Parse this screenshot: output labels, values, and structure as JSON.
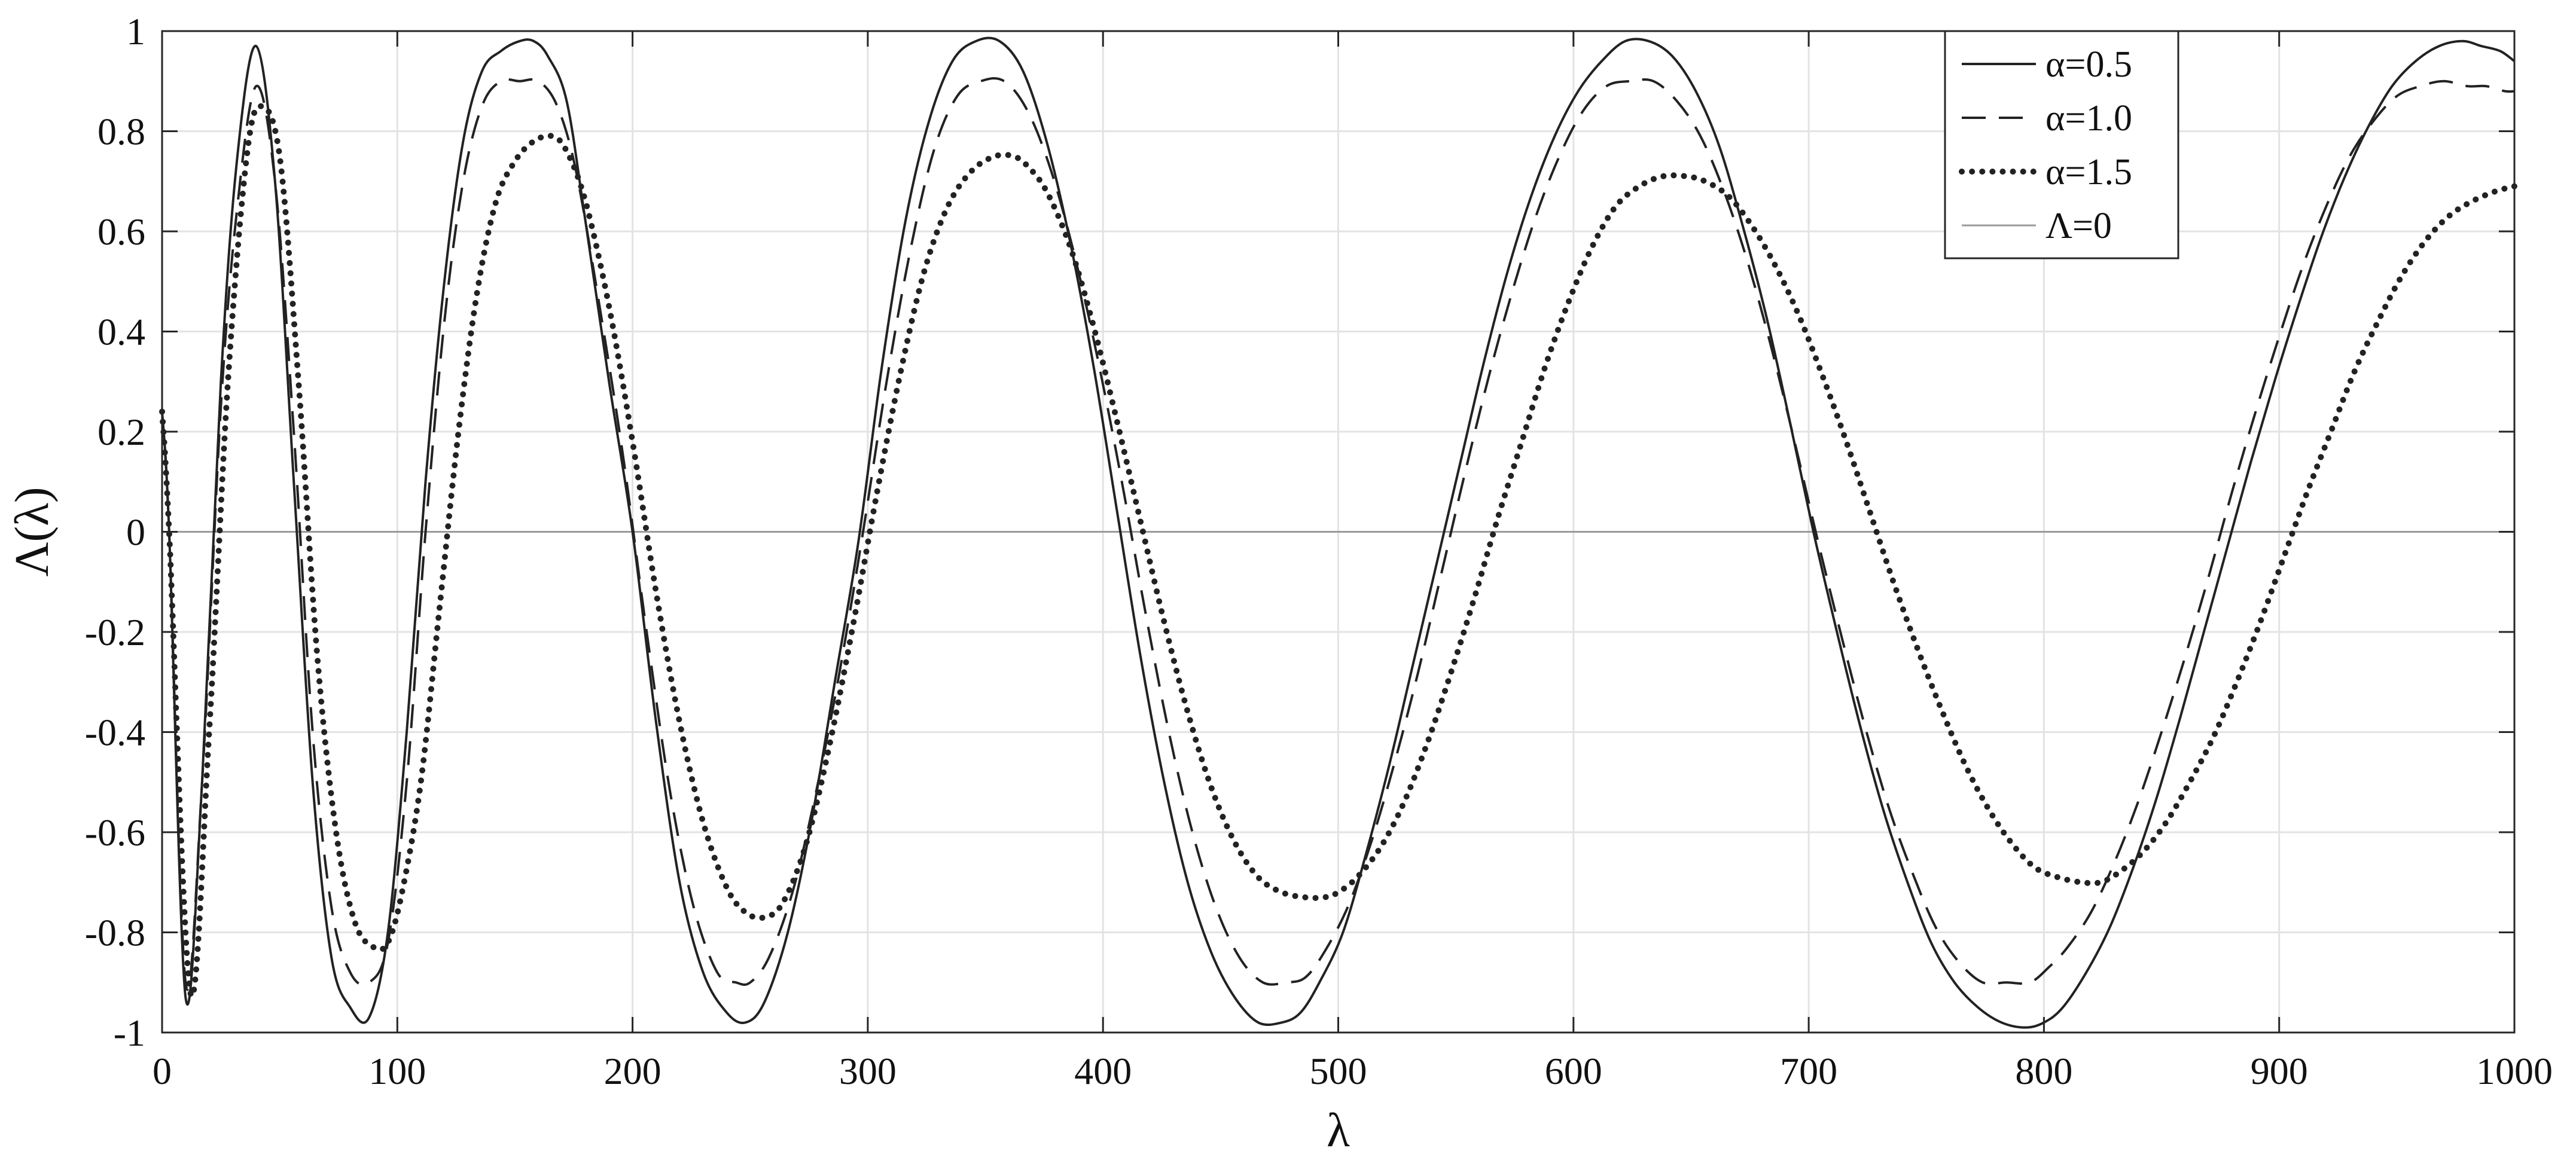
{
  "chart_data": {
    "type": "line",
    "title": "",
    "xlabel": "λ",
    "ylabel": "Λ(λ)",
    "xlim": [
      0,
      1000
    ],
    "ylim": [
      -1,
      1
    ],
    "xticks": [
      0,
      100,
      200,
      300,
      400,
      500,
      600,
      700,
      800,
      900,
      1000
    ],
    "xtick_labels": [
      "0",
      "100",
      "200",
      "300",
      "400",
      "500",
      "600",
      "700",
      "800",
      "900",
      "1000"
    ],
    "yticks": [
      -1,
      -0.8,
      -0.6,
      -0.4,
      -0.2,
      0,
      0.2,
      0.4,
      0.6,
      0.8,
      1
    ],
    "ytick_labels": [
      "-1",
      "-0.8",
      "-0.6",
      "-0.4",
      "-0.2",
      "0",
      "0.2",
      "0.4",
      "0.6",
      "0.8",
      "1"
    ],
    "grid": true,
    "legend_position": "top-right",
    "series": [
      {
        "name": "α=0.5",
        "style": "solid",
        "color": "#222222",
        "x": [
          0,
          3,
          10,
          17,
          25,
          32,
          40,
          48,
          56,
          64,
          72,
          80,
          88,
          96,
          104,
          112,
          120,
          128,
          136,
          144,
          152,
          158,
          164,
          172,
          180,
          190,
          200,
          210,
          220,
          230,
          240,
          248,
          256,
          266,
          276,
          286,
          296,
          306,
          316,
          326,
          336,
          346,
          356,
          366,
          376,
          386,
          396,
          406,
          416,
          426,
          436,
          446,
          456,
          466,
          476,
          484,
          492,
          502,
          512,
          522,
          532,
          542,
          552,
          562,
          572,
          582,
          592,
          602,
          612,
          622,
          632,
          642,
          652,
          662,
          672,
          682,
          692,
          702,
          712,
          722,
          732,
          742,
          752,
          762,
          772,
          782,
          792,
          800,
          808,
          818,
          828,
          838,
          848,
          858,
          868,
          878,
          888,
          898,
          908,
          918,
          928,
          938,
          948,
          958,
          968,
          978,
          986,
          994,
          1000
        ],
        "y": [
          0.24,
          0.0,
          -0.93,
          -0.5,
          0.3,
          0.75,
          0.97,
          0.7,
          0.1,
          -0.5,
          -0.85,
          -0.95,
          -0.97,
          -0.8,
          -0.4,
          0.1,
          0.5,
          0.78,
          0.92,
          0.96,
          0.98,
          0.98,
          0.95,
          0.86,
          0.62,
          0.3,
          0.0,
          -0.38,
          -0.7,
          -0.88,
          -0.96,
          -0.98,
          -0.94,
          -0.8,
          -0.58,
          -0.3,
          -0.02,
          0.33,
          0.62,
          0.82,
          0.94,
          0.98,
          0.98,
          0.92,
          0.78,
          0.58,
          0.33,
          0.04,
          -0.25,
          -0.5,
          -0.7,
          -0.84,
          -0.93,
          -0.98,
          -0.98,
          -0.96,
          -0.9,
          -0.8,
          -0.64,
          -0.46,
          -0.26,
          -0.06,
          0.14,
          0.34,
          0.52,
          0.67,
          0.79,
          0.88,
          0.94,
          0.98,
          0.98,
          0.95,
          0.88,
          0.77,
          0.61,
          0.43,
          0.22,
          0.0,
          -0.2,
          -0.39,
          -0.56,
          -0.7,
          -0.82,
          -0.9,
          -0.95,
          -0.98,
          -0.99,
          -0.98,
          -0.95,
          -0.88,
          -0.79,
          -0.67,
          -0.53,
          -0.37,
          -0.2,
          -0.03,
          0.14,
          0.3,
          0.45,
          0.59,
          0.71,
          0.81,
          0.89,
          0.94,
          0.97,
          0.98,
          0.97,
          0.96,
          0.94
        ]
      },
      {
        "name": "α=1.0",
        "style": "dashed",
        "color": "#222222",
        "x": [
          0,
          3,
          10,
          17,
          25,
          32,
          40,
          48,
          56,
          64,
          72,
          80,
          88,
          96,
          104,
          112,
          120,
          128,
          136,
          144,
          152,
          160,
          168,
          176,
          186,
          196,
          206,
          216,
          226,
          236,
          244,
          250,
          258,
          268,
          278,
          288,
          298,
          308,
          318,
          328,
          338,
          348,
          358,
          368,
          378,
          388,
          398,
          408,
          418,
          428,
          438,
          448,
          458,
          468,
          478,
          486,
          494,
          504,
          514,
          524,
          534,
          544,
          554,
          564,
          574,
          584,
          594,
          604,
          614,
          624,
          634,
          644,
          654,
          664,
          674,
          684,
          694,
          704,
          714,
          724,
          734,
          744,
          754,
          764,
          774,
          784,
          794,
          802,
          810,
          820,
          830,
          840,
          850,
          860,
          870,
          880,
          890,
          900,
          910,
          920,
          930,
          940,
          950,
          960,
          970,
          980,
          988,
          996,
          1000
        ],
        "y": [
          0.24,
          0.0,
          -0.9,
          -0.5,
          0.25,
          0.65,
          0.89,
          0.7,
          0.2,
          -0.4,
          -0.75,
          -0.88,
          -0.9,
          -0.82,
          -0.5,
          0.0,
          0.42,
          0.7,
          0.85,
          0.9,
          0.9,
          0.9,
          0.85,
          0.72,
          0.45,
          0.15,
          -0.2,
          -0.52,
          -0.75,
          -0.88,
          -0.9,
          -0.9,
          -0.85,
          -0.72,
          -0.52,
          -0.28,
          0.0,
          0.3,
          0.56,
          0.76,
          0.87,
          0.9,
          0.9,
          0.84,
          0.72,
          0.55,
          0.34,
          0.1,
          -0.16,
          -0.4,
          -0.6,
          -0.75,
          -0.85,
          -0.9,
          -0.9,
          -0.89,
          -0.84,
          -0.75,
          -0.62,
          -0.46,
          -0.28,
          -0.08,
          0.12,
          0.31,
          0.48,
          0.63,
          0.75,
          0.84,
          0.89,
          0.9,
          0.9,
          0.86,
          0.79,
          0.68,
          0.54,
          0.37,
          0.18,
          -0.02,
          -0.21,
          -0.39,
          -0.55,
          -0.68,
          -0.79,
          -0.86,
          -0.9,
          -0.9,
          -0.9,
          -0.87,
          -0.83,
          -0.76,
          -0.66,
          -0.54,
          -0.4,
          -0.25,
          -0.09,
          0.08,
          0.24,
          0.39,
          0.53,
          0.65,
          0.75,
          0.82,
          0.87,
          0.89,
          0.9,
          0.89,
          0.89,
          0.88,
          0.88
        ]
      },
      {
        "name": "α=1.5",
        "style": "dotted",
        "color": "#222222",
        "x": [
          0,
          3,
          12,
          20,
          28,
          36,
          42,
          50,
          58,
          66,
          74,
          82,
          90,
          96,
          102,
          110,
          118,
          126,
          134,
          142,
          150,
          158,
          166,
          172,
          180,
          190,
          200,
          210,
          220,
          230,
          240,
          248,
          256,
          264,
          274,
          284,
          294,
          304,
          314,
          324,
          334,
          344,
          354,
          362,
          368,
          376,
          386,
          396,
          406,
          416,
          426,
          436,
          446,
          456,
          466,
          476,
          486,
          494,
          500,
          508,
          518,
          528,
          538,
          548,
          558,
          568,
          578,
          588,
          598,
          608,
          618,
          628,
          638,
          648,
          656,
          666,
          676,
          686,
          696,
          706,
          716,
          726,
          736,
          746,
          756,
          766,
          776,
          786,
          796,
          806,
          816,
          824,
          832,
          842,
          852,
          862,
          872,
          882,
          892,
          902,
          912,
          922,
          932,
          942,
          952,
          962,
          972,
          982,
          992,
          1000
        ],
        "y": [
          0.24,
          0.0,
          -0.92,
          -0.4,
          0.3,
          0.75,
          0.85,
          0.75,
          0.3,
          -0.25,
          -0.6,
          -0.78,
          -0.83,
          -0.82,
          -0.72,
          -0.5,
          -0.15,
          0.2,
          0.48,
          0.66,
          0.74,
          0.78,
          0.79,
          0.76,
          0.66,
          0.45,
          0.18,
          -0.12,
          -0.38,
          -0.58,
          -0.71,
          -0.76,
          -0.77,
          -0.74,
          -0.62,
          -0.42,
          -0.18,
          0.08,
          0.32,
          0.52,
          0.65,
          0.72,
          0.75,
          0.75,
          0.73,
          0.68,
          0.57,
          0.41,
          0.22,
          0.02,
          -0.18,
          -0.36,
          -0.51,
          -0.62,
          -0.69,
          -0.72,
          -0.73,
          -0.73,
          -0.72,
          -0.69,
          -0.63,
          -0.54,
          -0.42,
          -0.28,
          -0.13,
          0.03,
          0.18,
          0.33,
          0.46,
          0.57,
          0.65,
          0.69,
          0.71,
          0.71,
          0.7,
          0.67,
          0.61,
          0.53,
          0.43,
          0.31,
          0.18,
          0.04,
          -0.1,
          -0.23,
          -0.35,
          -0.46,
          -0.55,
          -0.62,
          -0.67,
          -0.69,
          -0.7,
          -0.7,
          -0.68,
          -0.64,
          -0.58,
          -0.5,
          -0.41,
          -0.3,
          -0.18,
          -0.05,
          0.08,
          0.2,
          0.32,
          0.42,
          0.51,
          0.58,
          0.63,
          0.66,
          0.68,
          0.69
        ]
      },
      {
        "name": "Λ=0",
        "style": "solid",
        "color": "#9a9a9a",
        "x": [
          0,
          1000
        ],
        "y": [
          0,
          0
        ]
      }
    ]
  }
}
